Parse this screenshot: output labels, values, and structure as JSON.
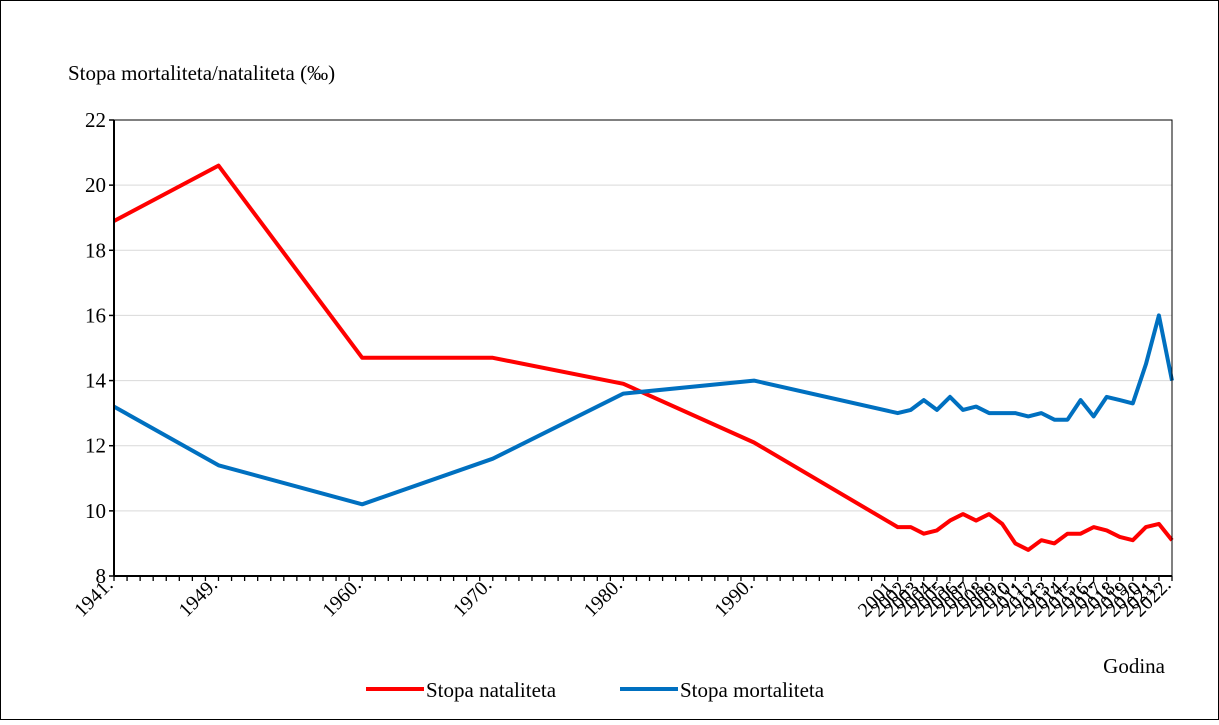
{
  "chart_data": {
    "type": "line",
    "title": "",
    "ylabel": "Stopa mortaliteta/nataliteta (‰)",
    "xlabel": "Godina",
    "ylim": [
      8,
      22
    ],
    "yticks": [
      8,
      10,
      12,
      14,
      16,
      18,
      20,
      22
    ],
    "grid": true,
    "legend_position": "bottom",
    "x": [
      1941,
      1949,
      1960,
      1970,
      1980,
      1990,
      2001,
      2002,
      2003,
      2004,
      2005,
      2006,
      2007,
      2008,
      2009,
      2010,
      2011,
      2012,
      2013,
      2014,
      2015,
      2016,
      2017,
      2018,
      2019,
      2020,
      2021,
      2022
    ],
    "x_labels": [
      "1941.",
      "1949.",
      "1960.",
      "1970.",
      "1980.",
      "1990.",
      "2001.",
      "2002.",
      "2003.",
      "2004.",
      "2005.",
      "2006.",
      "2007.",
      "2008.",
      "2009.",
      "2010.",
      "2011.",
      "2012.",
      "2013.",
      "2014.",
      "2015.",
      "2016.",
      "2017.",
      "2018.",
      "2019.",
      "2020.",
      "2021.",
      "2022."
    ],
    "series": [
      {
        "name": "Stopa nataliteta",
        "color": "#ff0000",
        "values": [
          18.9,
          20.6,
          14.7,
          14.7,
          13.9,
          12.1,
          9.5,
          9.5,
          9.3,
          9.4,
          9.7,
          9.9,
          9.7,
          9.9,
          9.6,
          9.0,
          8.8,
          9.1,
          9.0,
          9.3,
          9.3,
          9.5,
          9.4,
          9.2,
          9.1,
          9.5,
          9.6,
          9.1
        ]
      },
      {
        "name": "Stopa mortaliteta",
        "color": "#0070c0",
        "values": [
          13.2,
          11.4,
          10.2,
          11.6,
          13.6,
          14.0,
          13.0,
          13.1,
          13.4,
          13.1,
          13.5,
          13.1,
          13.2,
          13.0,
          13.0,
          13.0,
          12.9,
          13.0,
          12.8,
          12.8,
          13.4,
          12.9,
          13.5,
          13.4,
          13.3,
          14.5,
          16.0,
          14.0
        ]
      }
    ]
  }
}
